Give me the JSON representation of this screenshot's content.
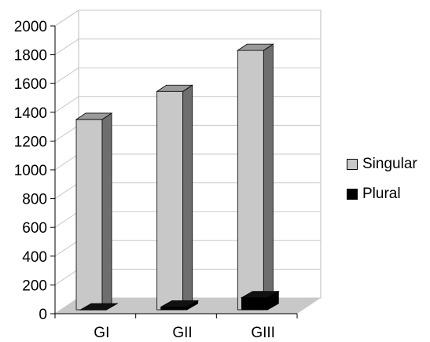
{
  "chart_data": {
    "type": "bar",
    "style": "3d-column",
    "categories": [
      "GI",
      "GII",
      "GIII"
    ],
    "series": [
      {
        "name": "Singular",
        "values": [
          1350,
          1545,
          1830
        ],
        "color": "#c8c8c8",
        "side_color": "#6e6e6e",
        "top_color": "#9a9a9a"
      },
      {
        "name": "Plural",
        "values": [
          10,
          30,
          95
        ],
        "color": "#000000",
        "side_color": "#000000",
        "top_color": "#111111"
      }
    ],
    "yticks": [
      "0",
      "200",
      "400",
      "600",
      "800",
      "1000",
      "1200",
      "1400",
      "1600",
      "1800",
      "2000"
    ],
    "ylim": [
      0,
      2000
    ],
    "grid": true,
    "legend_position": "right"
  }
}
